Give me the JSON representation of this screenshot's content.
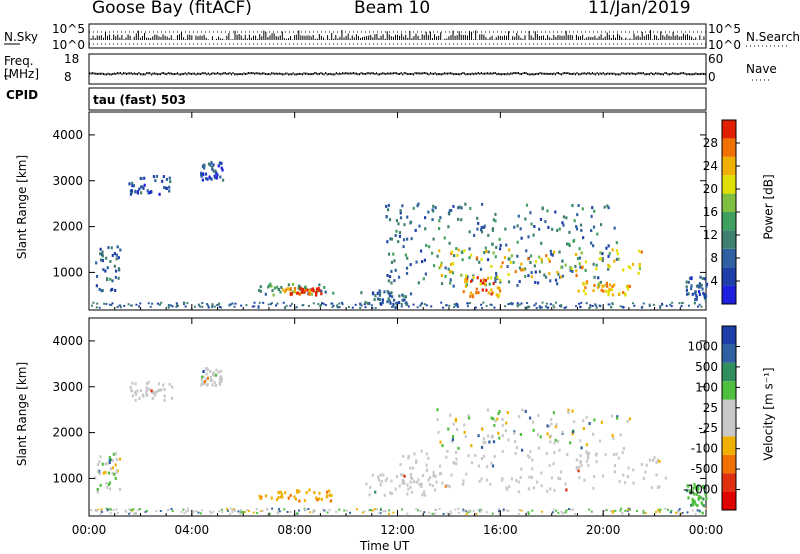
{
  "header": {
    "station": "Goose Bay (fitACF)",
    "beam": "Beam 10",
    "date": "11/Jan/2019"
  },
  "noise_panel": {
    "left_label": "N.Sky",
    "left_top": "10^5",
    "left_bottom": "10^0",
    "right_label": "N.Search",
    "right_top": "10^5",
    "right_bottom": "10^0"
  },
  "freq_panel": {
    "left_label_1": "Freq.",
    "left_label_2": "[MHz]",
    "left_top": "18",
    "left_bottom": "8",
    "right_label": "Nave",
    "right_top": "60",
    "right_bottom": "0"
  },
  "cpid": {
    "label": "CPID",
    "value": "tau (fast) 503"
  },
  "colors": {
    "power_scale": [
      "#1f1fe0",
      "#1f3fa8",
      "#2f60a0",
      "#3f7f70",
      "#3f9f5f",
      "#7fbf3f",
      "#e0e000",
      "#f0b000",
      "#f07000",
      "#e02000"
    ],
    "velocity_scale": [
      "#1f3fa8",
      "#2f60a0",
      "#2f8f5f",
      "#4fbf3f",
      "#c8c8c8",
      "#c8c8c8",
      "#f0b000",
      "#f07000",
      "#e03010",
      "#e00000"
    ],
    "gray_scatter": "#c8c8c8"
  },
  "chart_data": [
    {
      "type": "heatmap",
      "name": "Power",
      "xlabel": "Time UT",
      "ylabel": "Slant Range [km]",
      "x_ticks": [
        "00:00",
        "04:00",
        "08:00",
        "12:00",
        "16:00",
        "20:00",
        "00:00"
      ],
      "x_tick_hours": [
        0,
        4,
        8,
        12,
        16,
        20,
        24
      ],
      "y_ticks": [
        1000,
        2000,
        3000,
        4000
      ],
      "xlim": [
        0,
        24
      ],
      "ylim": [
        180,
        4500
      ],
      "colorbar": {
        "label": "Power [dB]",
        "ticks": [
          4,
          8,
          12,
          16,
          20,
          24,
          28
        ],
        "range": [
          0,
          32
        ]
      },
      "regions": [
        {
          "t": [
            0.2,
            1.2
          ],
          "r": [
            600,
            1600
          ],
          "level": 8
        },
        {
          "t": [
            1.5,
            3.2
          ],
          "r": [
            2700,
            3100
          ],
          "level": 6
        },
        {
          "t": [
            4.3,
            5.2
          ],
          "r": [
            3000,
            3400
          ],
          "level": 6
        },
        {
          "t": [
            6.5,
            9.5
          ],
          "r": [
            500,
            750
          ],
          "level": 14
        },
        {
          "t": [
            7.5,
            9.0
          ],
          "r": [
            500,
            650
          ],
          "level": 28
        },
        {
          "t": [
            10.5,
            12.5
          ],
          "r": [
            300,
            600
          ],
          "level": 8
        },
        {
          "t": [
            11.5,
            20.5
          ],
          "r": [
            700,
            2500
          ],
          "level": 10
        },
        {
          "t": [
            13.5,
            21.5
          ],
          "r": [
            900,
            1500
          ],
          "level": 22
        },
        {
          "t": [
            14.5,
            16.0
          ],
          "r": [
            450,
            900
          ],
          "level": 26
        },
        {
          "t": [
            19.0,
            21.0
          ],
          "r": [
            500,
            800
          ],
          "level": 24
        },
        {
          "t": [
            23.2,
            24
          ],
          "r": [
            400,
            900
          ],
          "level": 8
        }
      ]
    },
    {
      "type": "heatmap",
      "name": "Velocity",
      "xlabel": "Time UT",
      "ylabel": "Slant Range [km]",
      "x_ticks": [
        "00:00",
        "04:00",
        "08:00",
        "12:00",
        "16:00",
        "20:00",
        "00:00"
      ],
      "x_tick_hours": [
        0,
        4,
        8,
        12,
        16,
        20,
        24
      ],
      "y_ticks": [
        1000,
        2000,
        3000,
        4000
      ],
      "xlim": [
        0,
        24
      ],
      "ylim": [
        180,
        4500
      ],
      "colorbar": {
        "label": "Velocity [m s-1]",
        "ticks": [
          "1000",
          "500",
          "100",
          "25",
          "-25",
          "-100",
          "-500",
          "-1000"
        ]
      },
      "regions": [
        {
          "t": [
            0.2,
            1.2
          ],
          "r": [
            700,
            1600
          ],
          "class": "mixed"
        },
        {
          "t": [
            1.5,
            3.2
          ],
          "r": [
            2700,
            3100
          ],
          "class": "gray"
        },
        {
          "t": [
            4.3,
            5.2
          ],
          "r": [
            3000,
            3400
          ],
          "class": "gray"
        },
        {
          "t": [
            6.5,
            9.5
          ],
          "r": [
            500,
            750
          ],
          "class": "orange"
        },
        {
          "t": [
            10.5,
            13.5
          ],
          "r": [
            600,
            1100
          ],
          "class": "gray"
        },
        {
          "t": [
            12.0,
            22.5
          ],
          "r": [
            700,
            1600
          ],
          "class": "gray"
        },
        {
          "t": [
            13.5,
            21.0
          ],
          "r": [
            1600,
            2500
          ],
          "class": "mixed"
        },
        {
          "t": [
            23.2,
            24
          ],
          "r": [
            400,
            900
          ],
          "class": "green"
        }
      ]
    }
  ],
  "axes": {
    "x_title": "Time UT",
    "y_title": "Slant Range [km]",
    "power_cb_label": "Power [dB]",
    "velocity_cb_label": "Velocity [m s⁻¹]"
  }
}
